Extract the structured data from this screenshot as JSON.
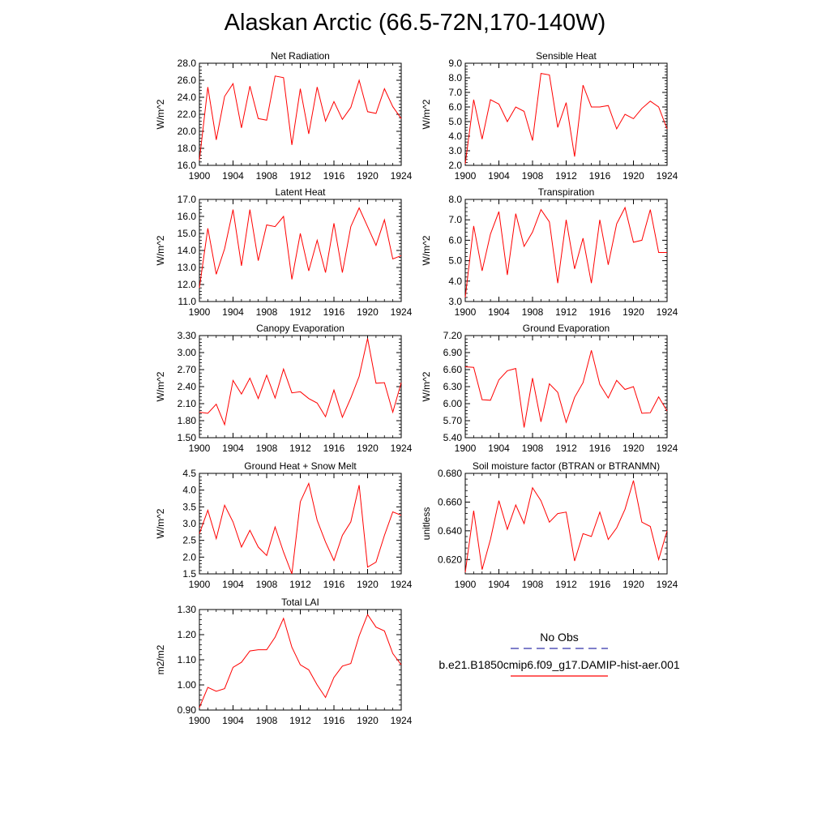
{
  "title": "Alaskan Arctic (66.5-72N,170-140W)",
  "chart_data": [
    {
      "type": "line",
      "title": "Net Radiation",
      "ylabel": "W/m^2",
      "x": [
        1900,
        1901,
        1902,
        1903,
        1904,
        1905,
        1906,
        1907,
        1908,
        1909,
        1910,
        1911,
        1912,
        1913,
        1914,
        1915,
        1916,
        1917,
        1918,
        1919,
        1920,
        1921,
        1922,
        1923,
        1924
      ],
      "xticks": [
        "1900",
        "1904",
        "1908",
        "1912",
        "1916",
        "1920",
        "1924"
      ],
      "xlim": [
        1900,
        1924
      ],
      "ylim": [
        16.0,
        28.0
      ],
      "yticks": [
        "16.0",
        "18.0",
        "20.0",
        "22.0",
        "24.0",
        "26.0",
        "28.0"
      ],
      "series": [
        {
          "values": [
            16.6,
            25.2,
            19.0,
            24.1,
            25.6,
            20.4,
            25.3,
            21.5,
            21.3,
            26.5,
            26.3,
            18.4,
            25.0,
            19.7,
            25.2,
            21.2,
            23.5,
            21.4,
            22.8,
            26.0,
            22.3,
            22.1,
            25.0,
            22.9,
            21.5
          ]
        }
      ]
    },
    {
      "type": "line",
      "title": "Sensible Heat",
      "ylabel": "W/m^2",
      "x": [
        1900,
        1901,
        1902,
        1903,
        1904,
        1905,
        1906,
        1907,
        1908,
        1909,
        1910,
        1911,
        1912,
        1913,
        1914,
        1915,
        1916,
        1917,
        1918,
        1919,
        1920,
        1921,
        1922,
        1923,
        1924
      ],
      "xticks": [
        "1900",
        "1904",
        "1908",
        "1912",
        "1916",
        "1920",
        "1924"
      ],
      "xlim": [
        1900,
        1924
      ],
      "ylim": [
        2.0,
        9.0
      ],
      "yticks": [
        "2.0",
        "3.0",
        "4.0",
        "5.0",
        "6.0",
        "7.0",
        "8.0",
        "9.0"
      ],
      "series": [
        {
          "values": [
            2.1,
            6.5,
            3.8,
            6.5,
            6.2,
            5.0,
            6.0,
            5.7,
            3.7,
            8.3,
            8.2,
            4.6,
            6.3,
            2.6,
            7.5,
            6.0,
            6.0,
            6.1,
            4.5,
            5.5,
            5.2,
            5.9,
            6.4,
            6.0,
            4.5
          ]
        }
      ]
    },
    {
      "type": "line",
      "title": "Latent Heat",
      "ylabel": "W/m^2",
      "x": [
        1900,
        1901,
        1902,
        1903,
        1904,
        1905,
        1906,
        1907,
        1908,
        1909,
        1910,
        1911,
        1912,
        1913,
        1914,
        1915,
        1916,
        1917,
        1918,
        1919,
        1920,
        1921,
        1922,
        1923,
        1924
      ],
      "xticks": [
        "1900",
        "1904",
        "1908",
        "1912",
        "1916",
        "1920",
        "1924"
      ],
      "xlim": [
        1900,
        1924
      ],
      "ylim": [
        11.0,
        17.0
      ],
      "yticks": [
        "11.0",
        "12.0",
        "13.0",
        "14.0",
        "15.0",
        "16.0",
        "17.0"
      ],
      "series": [
        {
          "values": [
            11.8,
            15.3,
            12.6,
            14.1,
            16.4,
            13.1,
            16.4,
            13.4,
            15.5,
            15.4,
            16.0,
            12.3,
            15.0,
            12.8,
            14.6,
            12.7,
            15.6,
            12.7,
            15.4,
            16.5,
            15.4,
            14.3,
            15.8,
            13.5,
            13.7
          ]
        }
      ]
    },
    {
      "type": "line",
      "title": "Transpiration",
      "ylabel": "W/m^2",
      "x": [
        1900,
        1901,
        1902,
        1903,
        1904,
        1905,
        1906,
        1907,
        1908,
        1909,
        1910,
        1911,
        1912,
        1913,
        1914,
        1915,
        1916,
        1917,
        1918,
        1919,
        1920,
        1921,
        1922,
        1923,
        1924
      ],
      "xticks": [
        "1900",
        "1904",
        "1908",
        "1912",
        "1916",
        "1920",
        "1924"
      ],
      "xlim": [
        1900,
        1924
      ],
      "ylim": [
        3.0,
        8.0
      ],
      "yticks": [
        "3.0",
        "4.0",
        "5.0",
        "6.0",
        "7.0",
        "8.0"
      ],
      "series": [
        {
          "values": [
            3.2,
            6.7,
            4.5,
            6.3,
            7.4,
            4.3,
            7.3,
            5.7,
            6.4,
            7.5,
            6.9,
            3.9,
            7.0,
            4.6,
            6.1,
            3.9,
            7.0,
            4.8,
            6.8,
            7.6,
            5.9,
            6.0,
            7.5,
            5.4,
            5.4
          ]
        }
      ]
    },
    {
      "type": "line",
      "title": "Canopy Evaporation",
      "ylabel": "W/m^2",
      "x": [
        1900,
        1901,
        1902,
        1903,
        1904,
        1905,
        1906,
        1907,
        1908,
        1909,
        1910,
        1911,
        1912,
        1913,
        1914,
        1915,
        1916,
        1917,
        1918,
        1919,
        1920,
        1921,
        1922,
        1923,
        1924
      ],
      "xticks": [
        "1900",
        "1904",
        "1908",
        "1912",
        "1916",
        "1920",
        "1924"
      ],
      "xlim": [
        1900,
        1924
      ],
      "ylim": [
        1.5,
        3.3
      ],
      "yticks": [
        "1.50",
        "1.80",
        "2.10",
        "2.40",
        "2.70",
        "3.00",
        "3.30"
      ],
      "series": [
        {
          "values": [
            1.95,
            1.93,
            2.09,
            1.73,
            2.51,
            2.27,
            2.55,
            2.19,
            2.6,
            2.2,
            2.71,
            2.29,
            2.31,
            2.19,
            2.11,
            1.87,
            2.34,
            1.86,
            2.2,
            2.58,
            3.25,
            2.46,
            2.47,
            1.95,
            2.47
          ]
        }
      ]
    },
    {
      "type": "line",
      "title": "Ground Evaporation",
      "ylabel": "W/m^2",
      "x": [
        1900,
        1901,
        1902,
        1903,
        1904,
        1905,
        1906,
        1907,
        1908,
        1909,
        1910,
        1911,
        1912,
        1913,
        1914,
        1915,
        1916,
        1917,
        1918,
        1919,
        1920,
        1921,
        1922,
        1923,
        1924
      ],
      "xticks": [
        "1900",
        "1904",
        "1908",
        "1912",
        "1916",
        "1920",
        "1924"
      ],
      "xlim": [
        1900,
        1924
      ],
      "ylim": [
        5.4,
        7.2
      ],
      "yticks": [
        "5.40",
        "5.70",
        "6.00",
        "6.30",
        "6.60",
        "6.90",
        "7.20"
      ],
      "series": [
        {
          "values": [
            6.65,
            6.64,
            6.07,
            6.06,
            6.42,
            6.58,
            6.62,
            5.58,
            6.45,
            5.68,
            6.35,
            6.2,
            5.67,
            6.11,
            6.37,
            6.94,
            6.34,
            6.1,
            6.41,
            6.25,
            6.3,
            5.83,
            5.84,
            6.12,
            5.87
          ]
        }
      ]
    },
    {
      "type": "line",
      "title": "Ground Heat + Snow Melt",
      "ylabel": "W/m^2",
      "x": [
        1900,
        1901,
        1902,
        1903,
        1904,
        1905,
        1906,
        1907,
        1908,
        1909,
        1910,
        1911,
        1912,
        1913,
        1914,
        1915,
        1916,
        1917,
        1918,
        1919,
        1920,
        1921,
        1922,
        1923,
        1924
      ],
      "xticks": [
        "1900",
        "1904",
        "1908",
        "1912",
        "1916",
        "1920",
        "1924"
      ],
      "xlim": [
        1900,
        1924
      ],
      "ylim": [
        1.5,
        4.5
      ],
      "yticks": [
        "1.5",
        "2.0",
        "2.5",
        "3.0",
        "3.5",
        "4.0",
        "4.5"
      ],
      "series": [
        {
          "values": [
            2.7,
            3.4,
            2.55,
            3.55,
            3.05,
            2.3,
            2.8,
            2.3,
            2.05,
            2.9,
            2.15,
            1.5,
            3.65,
            4.2,
            3.1,
            2.45,
            1.9,
            2.65,
            3.05,
            4.15,
            1.7,
            1.85,
            2.65,
            3.35,
            3.25
          ]
        }
      ]
    },
    {
      "type": "line",
      "title": "Soil moisture factor (BTRAN or BTRANMN)",
      "ylabel": "unitless",
      "x": [
        1900,
        1901,
        1902,
        1903,
        1904,
        1905,
        1906,
        1907,
        1908,
        1909,
        1910,
        1911,
        1912,
        1913,
        1914,
        1915,
        1916,
        1917,
        1918,
        1919,
        1920,
        1921,
        1922,
        1923,
        1924
      ],
      "xticks": [
        "1900",
        "1904",
        "1908",
        "1912",
        "1916",
        "1920",
        "1924"
      ],
      "xlim": [
        1900,
        1924
      ],
      "ylim": [
        0.61,
        0.68
      ],
      "yticks": [
        "0.620",
        "0.640",
        "0.660",
        "0.680"
      ],
      "series": [
        {
          "values": [
            0.611,
            0.654,
            0.613,
            0.634,
            0.661,
            0.641,
            0.658,
            0.645,
            0.67,
            0.661,
            0.646,
            0.652,
            0.653,
            0.619,
            0.638,
            0.636,
            0.653,
            0.634,
            0.642,
            0.655,
            0.675,
            0.646,
            0.643,
            0.62,
            0.64
          ]
        }
      ]
    },
    {
      "type": "line",
      "title": "Total LAI",
      "ylabel": "m2/m2",
      "x": [
        1900,
        1901,
        1902,
        1903,
        1904,
        1905,
        1906,
        1907,
        1908,
        1909,
        1910,
        1911,
        1912,
        1913,
        1914,
        1915,
        1916,
        1917,
        1918,
        1919,
        1920,
        1921,
        1922,
        1923,
        1924
      ],
      "xticks": [
        "1900",
        "1904",
        "1908",
        "1912",
        "1916",
        "1920",
        "1924"
      ],
      "xlim": [
        1900,
        1924
      ],
      "ylim": [
        0.9,
        1.3
      ],
      "yticks": [
        "0.90",
        "1.00",
        "1.10",
        "1.20",
        "1.30"
      ],
      "series": [
        {
          "values": [
            0.91,
            0.99,
            0.975,
            0.985,
            1.07,
            1.09,
            1.135,
            1.14,
            1.14,
            1.19,
            1.265,
            1.15,
            1.08,
            1.06,
            1.0,
            0.95,
            1.03,
            1.075,
            1.085,
            1.195,
            1.28,
            1.23,
            1.215,
            1.125,
            1.08
          ]
        }
      ]
    }
  ],
  "legend": {
    "obs_label": "No Obs",
    "obs_color": "#3333aa",
    "model_label": "b.e21.B1850cmip6.f09_g17.DAMIP-hist-aer.001",
    "model_color": "#ff0000"
  }
}
